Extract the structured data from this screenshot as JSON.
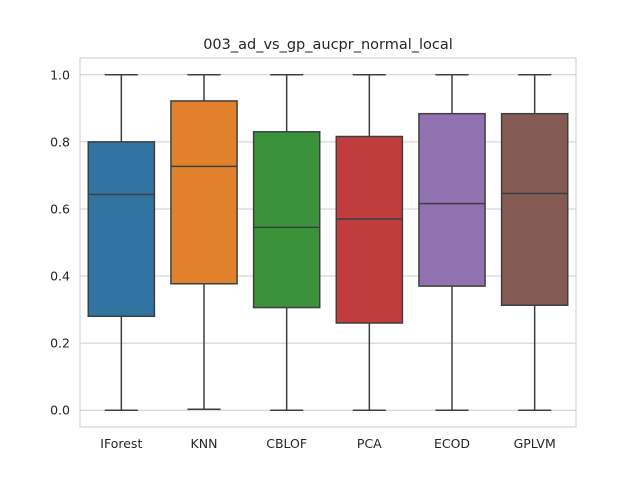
{
  "chart_data": {
    "type": "box",
    "title": "003_ad_vs_gp_aucpr_normal_local",
    "xlabel": "",
    "ylabel": "",
    "ylim": [
      -0.05,
      1.05
    ],
    "yticks": [
      "0.0",
      "0.2",
      "0.4",
      "0.6",
      "0.8",
      "1.0"
    ],
    "grid": true,
    "categories": [
      "IForest",
      "KNN",
      "CBLOF",
      "PCA",
      "ECOD",
      "GPLVM"
    ],
    "colors": [
      "#3274a1",
      "#e1812c",
      "#3a923a",
      "#c03d3e",
      "#9372b2",
      "#845b53"
    ],
    "boxes": [
      {
        "name": "IForest",
        "whislo": 0.0,
        "q1": 0.28,
        "med": 0.643,
        "q3": 0.8,
        "whishi": 1.0
      },
      {
        "name": "KNN",
        "whislo": 0.003,
        "q1": 0.377,
        "med": 0.727,
        "q3": 0.922,
        "whishi": 1.0
      },
      {
        "name": "CBLOF",
        "whislo": 0.0,
        "q1": 0.306,
        "med": 0.545,
        "q3": 0.83,
        "whishi": 1.0
      },
      {
        "name": "PCA",
        "whislo": 0.0,
        "q1": 0.26,
        "med": 0.57,
        "q3": 0.816,
        "whishi": 1.0
      },
      {
        "name": "ECOD",
        "whislo": 0.0,
        "q1": 0.37,
        "med": 0.616,
        "q3": 0.884,
        "whishi": 1.0
      },
      {
        "name": "GPLVM",
        "whislo": 0.0,
        "q1": 0.313,
        "med": 0.646,
        "q3": 0.884,
        "whishi": 1.0
      }
    ]
  }
}
